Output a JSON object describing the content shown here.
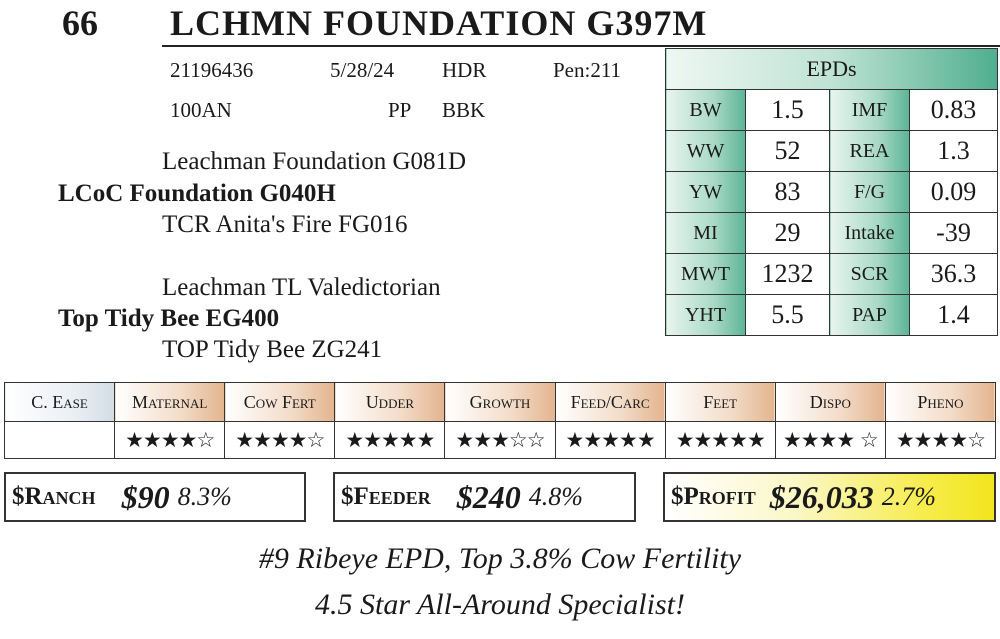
{
  "header": {
    "lot_number": "66",
    "bull_name": "LCHMN FOUNDATION G397M"
  },
  "info": {
    "registration": "21196436",
    "birth_date": "5/28/24",
    "code": "HDR",
    "pen": "Pen:211",
    "tattoo": "100AN",
    "polled": "PP",
    "color": "BBK"
  },
  "pedigree": {
    "sire_sire": "Leachman Foundation G081D",
    "sire": "LCoC Foundation G040H",
    "sire_dam": "TCR Anita's Fire FG016",
    "dam_sire": "Leachman TL Valedictorian",
    "dam": "Top Tidy Bee EG400",
    "dam_dam": "TOP Tidy Bee ZG241"
  },
  "epds": {
    "title": "EPDs",
    "rows": [
      {
        "l1": "BW",
        "v1": "1.5",
        "l2": "IMF",
        "v2": "0.83"
      },
      {
        "l1": "WW",
        "v1": "52",
        "l2": "REA",
        "v2": "1.3"
      },
      {
        "l1": "YW",
        "v1": "83",
        "l2": "F/G",
        "v2": "0.09"
      },
      {
        "l1": "MI",
        "v1": "29",
        "l2": "Intake",
        "v2": "-39"
      },
      {
        "l1": "MWT",
        "v1": "1232",
        "l2": "SCR",
        "v2": "36.3"
      },
      {
        "l1": "YHT",
        "v1": "5.5",
        "l2": "PAP",
        "v2": "1.4"
      }
    ]
  },
  "indexes": {
    "headers": [
      "C. Ease",
      "Maternal",
      "Cow Fert",
      "Udder",
      "Growth",
      "Feed/Carc",
      "Feet",
      "Dispo",
      "Pheno"
    ],
    "stars": [
      "",
      "★★★★☆",
      "★★★★☆",
      "★★★★★",
      "★★★☆☆",
      "★★★★★",
      "★★★★★",
      "★★★★ ☆",
      "★★★★☆"
    ]
  },
  "dollar_values": {
    "ranch": {
      "label": "$Ranch",
      "value": "$90",
      "percent": "8.3%"
    },
    "feeder": {
      "label": "$Feeder",
      "value": "$240",
      "percent": "4.8%"
    },
    "profit": {
      "label": "$Profit",
      "value": "$26,033",
      "percent": "2.7%"
    }
  },
  "taglines": [
    "#9 Ribeye EPD, Top 3.8% Cow Fertility",
    "4.5 Star All-Around Specialist!"
  ],
  "colors": {
    "epd_accent": "#4fae8e",
    "index_accent": "#e3b48f",
    "profit_accent": "#f2e51e"
  }
}
